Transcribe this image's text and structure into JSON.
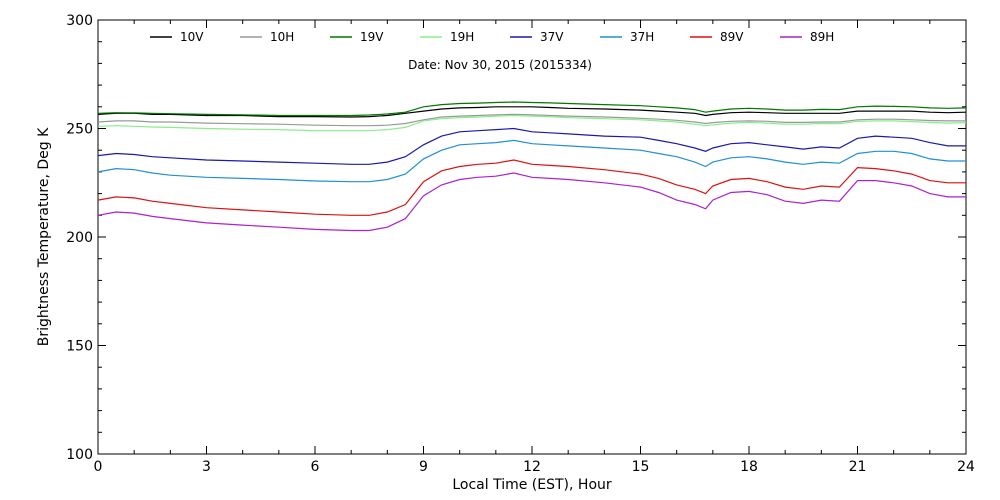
{
  "chart_data": {
    "type": "line",
    "title": "Date: Nov 30, 2015 (2015334)",
    "xlabel": "Local Time (EST), Hour",
    "ylabel": "Brightness Temperature, Deg K",
    "xlim": [
      0,
      24
    ],
    "ylim": [
      100,
      300
    ],
    "x_ticks": [
      0,
      3,
      6,
      9,
      12,
      15,
      18,
      21,
      24
    ],
    "x_tick_labels": [
      "0",
      "3",
      "6",
      "9",
      "12",
      "15",
      "18",
      "21",
      "24"
    ],
    "y_ticks": [
      100,
      150,
      200,
      250,
      300
    ],
    "y_tick_labels": [
      "100",
      "150",
      "200",
      "250",
      "300"
    ],
    "grid": false,
    "legend_position": "top",
    "x": [
      0,
      0.5,
      1,
      1.5,
      2,
      3,
      4,
      5,
      6,
      7,
      7.5,
      8,
      8.5,
      9,
      9.5,
      10,
      10.5,
      11,
      11.5,
      12,
      12.5,
      13,
      14,
      15,
      15.5,
      16,
      16.5,
      16.8,
      17,
      17.5,
      18,
      18.5,
      19,
      19.5,
      20,
      20.5,
      21,
      21.5,
      22,
      22.5,
      23,
      23.5,
      24
    ],
    "series": [
      {
        "name": "10V",
        "color": "#000000",
        "values": [
          256.5,
          257,
          257,
          256.5,
          256.5,
          256,
          256,
          255.5,
          255.5,
          255.3,
          255.5,
          256,
          257,
          258,
          259,
          259.5,
          259.7,
          260,
          260,
          260,
          259.7,
          259.3,
          259,
          258.5,
          258,
          257.5,
          257,
          256,
          256.5,
          257.3,
          257.5,
          257.3,
          257,
          257,
          257,
          257,
          258,
          258,
          258,
          258,
          257.5,
          257.3,
          257.5
        ]
      },
      {
        "name": "10H",
        "color": "#999999",
        "values": [
          253,
          253.5,
          253.5,
          253,
          253,
          252.5,
          252.2,
          252,
          251.5,
          251.3,
          251.3,
          251.5,
          252.3,
          254,
          255.3,
          255.7,
          256,
          256.3,
          256.5,
          256.3,
          256,
          255.7,
          255.3,
          254.7,
          254.3,
          253.8,
          253,
          252.3,
          252.7,
          253.3,
          253.5,
          253.3,
          252.8,
          252.8,
          253,
          253,
          254,
          254.3,
          254.3,
          254,
          253.7,
          253.5,
          253.5
        ]
      },
      {
        "name": "19V",
        "color": "#007700",
        "values": [
          257,
          257.3,
          257.2,
          257,
          256.8,
          256.5,
          256.3,
          256,
          256,
          256,
          256.2,
          256.7,
          257.5,
          260,
          261,
          261.5,
          261.7,
          262,
          262.2,
          262,
          261.8,
          261.5,
          261,
          260.5,
          260,
          259.5,
          258.7,
          257.5,
          258,
          259,
          259.3,
          259,
          258.5,
          258.5,
          258.8,
          258.7,
          260,
          260.3,
          260.2,
          260,
          259.5,
          259.3,
          259.5
        ]
      },
      {
        "name": "19H",
        "color": "#88ee88",
        "values": [
          251,
          251.3,
          251,
          250.7,
          250.5,
          250,
          249.7,
          249.5,
          249,
          249,
          249,
          249.5,
          250.5,
          253.5,
          254.5,
          255,
          255.3,
          255.7,
          256,
          255.7,
          255.5,
          255,
          254.5,
          254,
          253.5,
          253,
          252,
          251.3,
          251.7,
          252.5,
          252.8,
          252.5,
          252,
          252,
          252.3,
          252.2,
          253.3,
          253.5,
          253.5,
          253.2,
          252.8,
          252.5,
          252.7
        ]
      },
      {
        "name": "37V",
        "color": "#1a1aa8",
        "values": [
          237.5,
          238.5,
          238,
          237,
          236.5,
          235.5,
          235,
          234.5,
          234,
          233.5,
          233.5,
          234.5,
          237,
          242.5,
          246.5,
          248.5,
          249,
          249.5,
          250,
          248.5,
          248,
          247.5,
          246.5,
          246,
          244.5,
          243,
          241,
          239.5,
          241,
          243,
          243.5,
          242.5,
          241.5,
          240.5,
          241.5,
          241,
          245.5,
          246.5,
          246,
          245.5,
          243.5,
          242,
          242
        ]
      },
      {
        "name": "37H",
        "color": "#2090d0",
        "values": [
          230,
          231.5,
          231,
          229.5,
          228.5,
          227.5,
          227,
          226.5,
          225.8,
          225.5,
          225.5,
          226.5,
          229,
          236,
          240,
          242.5,
          243,
          243.5,
          244.5,
          243,
          242.5,
          242,
          241,
          240,
          238.5,
          237,
          234.5,
          232.5,
          234.5,
          236.5,
          237,
          236,
          234.5,
          233.5,
          234.5,
          234,
          238.5,
          239.5,
          239.5,
          238.5,
          236,
          235,
          235
        ]
      },
      {
        "name": "89V",
        "color": "#dd1111",
        "values": [
          217,
          218.5,
          218,
          216.5,
          215.5,
          213.5,
          212.5,
          211.5,
          210.5,
          210,
          210,
          211.5,
          215,
          225.5,
          230.5,
          232.5,
          233.5,
          234,
          235.5,
          233.5,
          233,
          232.5,
          231,
          229,
          227,
          224,
          222,
          220,
          223.5,
          226.5,
          227,
          225.5,
          223,
          222,
          223.5,
          223,
          232,
          231.5,
          230.5,
          229,
          226,
          225,
          225
        ]
      },
      {
        "name": "89H",
        "color": "#aa22cc",
        "values": [
          210,
          211.5,
          211,
          209.5,
          208.5,
          206.5,
          205.5,
          204.5,
          203.5,
          203,
          203,
          204.5,
          208.5,
          219,
          224,
          226.5,
          227.5,
          228,
          229.5,
          227.5,
          227,
          226.5,
          225,
          223,
          220.5,
          217,
          215,
          213,
          217,
          220.5,
          221,
          219.5,
          216.5,
          215.5,
          217,
          216.5,
          226,
          226,
          225,
          223.5,
          220,
          218.5,
          218.5
        ]
      }
    ]
  }
}
